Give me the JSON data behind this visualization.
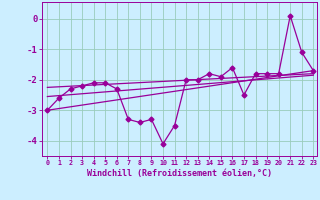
{
  "x": [
    0,
    1,
    2,
    3,
    4,
    5,
    6,
    7,
    8,
    9,
    10,
    11,
    12,
    13,
    14,
    15,
    16,
    17,
    18,
    19,
    20,
    21,
    22,
    23
  ],
  "line1": [
    -3.0,
    -2.6,
    -2.3,
    -2.2,
    -2.1,
    -2.1,
    -2.3,
    -3.3,
    -3.4,
    -3.3,
    -4.1,
    -3.5,
    -2.0,
    -2.0,
    -1.8,
    -1.9,
    -1.6,
    -2.5,
    -1.8,
    -1.8,
    -1.8,
    0.1,
    -1.1,
    -1.7
  ],
  "trend1_x": [
    0,
    23
  ],
  "trend1_y": [
    -3.0,
    -1.7
  ],
  "trend2_x": [
    0,
    23
  ],
  "trend2_y": [
    -2.55,
    -1.85
  ],
  "trend3_x": [
    0,
    23
  ],
  "trend3_y": [
    -2.25,
    -1.8
  ],
  "xlim_min": -0.5,
  "xlim_max": 23.3,
  "ylim_min": -4.5,
  "ylim_max": 0.55,
  "yticks": [
    0,
    -1,
    -2,
    -3,
    -4
  ],
  "xlabel": "Windchill (Refroidissement éolien,°C)",
  "line_color": "#990099",
  "bg_color": "#cceeff",
  "grid_color": "#99ccbb",
  "marker": "D",
  "marker_size": 2.5,
  "linewidth": 0.9
}
